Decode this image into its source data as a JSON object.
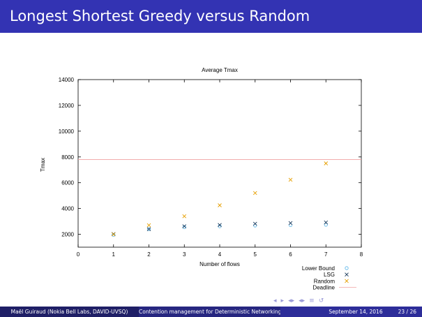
{
  "slide": {
    "title": "Longest Shortest Greedy versus Random"
  },
  "footer": {
    "author": "Maël Guiraud   (Nokia Bell Labs, DAVID-UVSQ)",
    "talk_title": "Contention management for Deterministic Networking",
    "date": "September 14, 2016",
    "page": "23 / 26"
  },
  "nav_icons": [
    "nav-frame-prev-icon",
    "nav-frame-next-icon",
    "nav-subsection-icon",
    "nav-section-icon",
    "nav-search-icon"
  ],
  "chart_data": {
    "type": "scatter",
    "title": "Average Tmax",
    "xlabel": "Number of flows",
    "ylabel": "Tmax",
    "xlim": [
      0,
      8
    ],
    "ylim": [
      1000,
      14000
    ],
    "xticks": [
      0,
      1,
      2,
      3,
      4,
      5,
      6,
      7,
      8
    ],
    "yticks": [
      2000,
      4000,
      6000,
      8000,
      10000,
      12000,
      14000
    ],
    "legend_position": "bottom-right",
    "series": [
      {
        "name": "Lower Bound",
        "marker": "circle",
        "color": "#56b4e9",
        "x": [
          1,
          2,
          3,
          4,
          5,
          6,
          7
        ],
        "y": [
          1950,
          2400,
          2550,
          2620,
          2680,
          2710,
          2740
        ]
      },
      {
        "name": "LSG",
        "marker": "cross",
        "color": "#1a3a5c",
        "x": [
          1,
          2,
          3,
          4,
          5,
          6,
          7
        ],
        "y": [
          2020,
          2400,
          2620,
          2720,
          2820,
          2870,
          2920
        ]
      },
      {
        "name": "Random",
        "marker": "cross",
        "color": "#e69f00",
        "x": [
          1,
          2,
          3,
          4,
          5,
          6,
          7
        ],
        "y": [
          2000,
          2700,
          3400,
          4250,
          5200,
          6230,
          7500
        ]
      },
      {
        "name": "Deadline",
        "marker": "line",
        "color": "#f0a0a0",
        "y": 7800
      }
    ]
  }
}
